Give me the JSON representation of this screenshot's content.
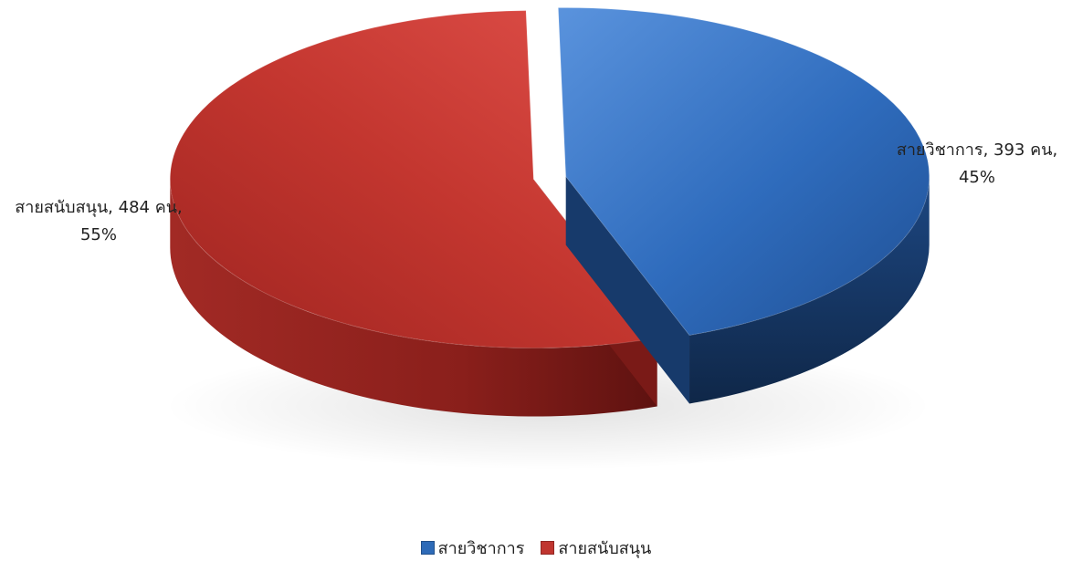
{
  "chart_data": {
    "type": "pie",
    "style": "3d",
    "title": "",
    "slices": [
      {
        "label": "สายวิชาการ",
        "value": 393,
        "unit": "คน",
        "percent": 45,
        "color": "#2e6bb8"
      },
      {
        "label": "สายสนับสนุน",
        "value": 484,
        "unit": "คน",
        "percent": 55,
        "color": "#c0352f"
      }
    ],
    "data_labels": [
      {
        "line1": "สายวิชาการ, 393 คน,",
        "line2": "45%"
      },
      {
        "line1": "สายสนับสนุน, 484 คน,",
        "line2": "55%"
      }
    ],
    "legend": {
      "position": "bottom",
      "items": [
        {
          "label": "สายวิชาการ",
          "color": "#2e6bb8"
        },
        {
          "label": "สายสนับสนุน",
          "color": "#c0352f"
        }
      ]
    }
  }
}
